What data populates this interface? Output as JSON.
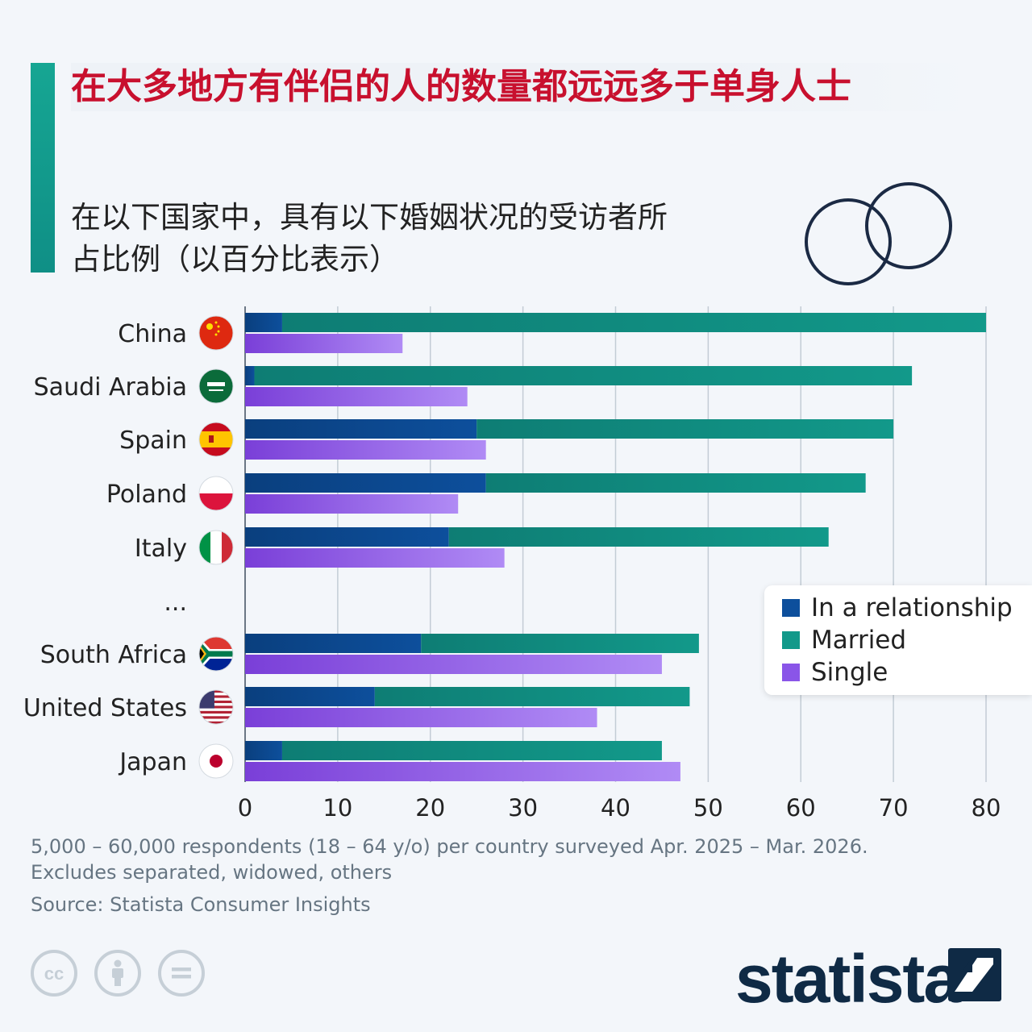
{
  "title": "在大多地方有伴侣的人的数量都远远多于单身人士",
  "subtitle_lines": [
    "在以下国家中，具有以下婚姻状况的受访者所",
    "占比例（以百分比表示）"
  ],
  "legend": {
    "relationship": "In a relationship",
    "married": "Married",
    "single": "Single"
  },
  "ellipsis": "...",
  "notes": {
    "line1": "5,000 – 60,000 respondents (18 – 64 y/o) per country surveyed Apr. 2025 – Mar. 2026.",
    "line2": "Excludes separated, widowed, others"
  },
  "source": "Source: Statista Consumer Insights",
  "brand": "statista",
  "colors": {
    "title": "#c8102e",
    "relationship": "#0d4f9c",
    "married": "#12998a",
    "single": "#8a55e8",
    "accent": "#16a693"
  },
  "icons": [
    "cc-icon",
    "attribution-icon",
    "no-derivatives-icon",
    "statista-logo-icon",
    "interlocking-rings-icon"
  ],
  "chart_data": {
    "type": "bar",
    "orientation": "horizontal",
    "stacked_series": [
      "In a relationship",
      "Married"
    ],
    "categories": [
      "China",
      "Saudi Arabia",
      "Spain",
      "Poland",
      "Italy",
      "South Africa",
      "United States",
      "Japan"
    ],
    "series": [
      {
        "name": "In a relationship",
        "values": [
          4,
          1,
          25,
          26,
          22,
          19,
          14,
          4
        ]
      },
      {
        "name": "Married",
        "values": [
          76,
          71,
          45,
          41,
          41,
          30,
          34,
          41
        ]
      },
      {
        "name": "Single",
        "values": [
          17,
          24,
          26,
          23,
          28,
          45,
          38,
          47
        ]
      }
    ],
    "xlim": [
      0,
      80
    ],
    "xticks": [
      0,
      10,
      20,
      30,
      40,
      50,
      60,
      70,
      80
    ],
    "grid": true,
    "legend_position": "right"
  }
}
